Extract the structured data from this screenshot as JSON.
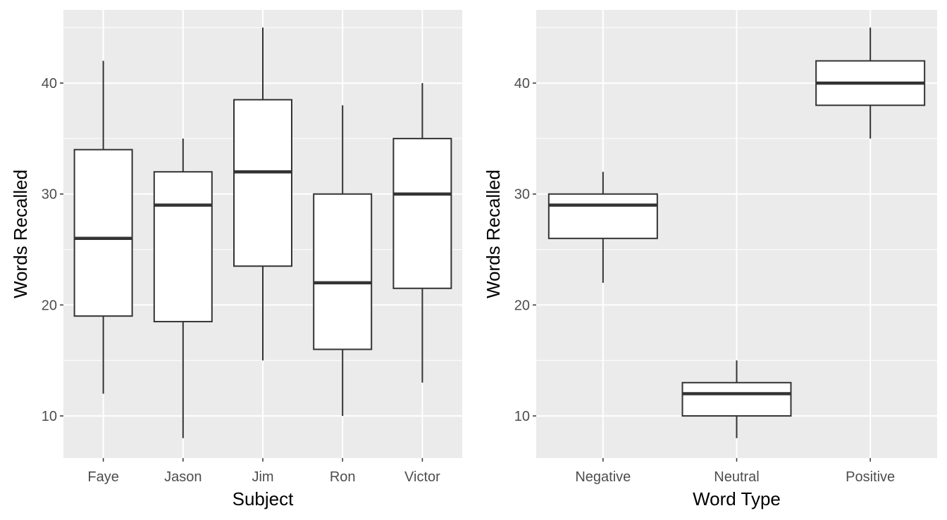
{
  "chart_data": [
    {
      "type": "boxplot",
      "xlabel": "Subject",
      "ylabel": "Words Recalled",
      "ylim": [
        6.2,
        46.6
      ],
      "yticks": [
        10,
        20,
        30,
        40
      ],
      "grid": true,
      "categories": [
        "Faye",
        "Jason",
        "Jim",
        "Ron",
        "Victor"
      ],
      "boxes": [
        {
          "min": 12,
          "q1": 19,
          "median": 26,
          "q3": 34,
          "max": 42
        },
        {
          "min": 8,
          "q1": 18.5,
          "median": 29,
          "q3": 32,
          "max": 35
        },
        {
          "min": 15,
          "q1": 23.5,
          "median": 32,
          "q3": 38.5,
          "max": 45
        },
        {
          "min": 10,
          "q1": 16,
          "median": 22,
          "q3": 30,
          "max": 38
        },
        {
          "min": 13,
          "q1": 21.5,
          "median": 30,
          "q3": 35,
          "max": 40
        }
      ]
    },
    {
      "type": "boxplot",
      "xlabel": "Word Type",
      "ylabel": "Words Recalled",
      "ylim": [
        6.2,
        46.6
      ],
      "yticks": [
        10,
        20,
        30,
        40
      ],
      "grid": true,
      "categories": [
        "Negative",
        "Neutral",
        "Positive"
      ],
      "boxes": [
        {
          "min": 22,
          "q1": 26,
          "median": 29,
          "q3": 30,
          "max": 32
        },
        {
          "min": 8,
          "q1": 10,
          "median": 12,
          "q3": 13,
          "max": 15
        },
        {
          "min": 35,
          "q1": 38,
          "median": 40,
          "q3": 42,
          "max": 45
        }
      ]
    }
  ]
}
